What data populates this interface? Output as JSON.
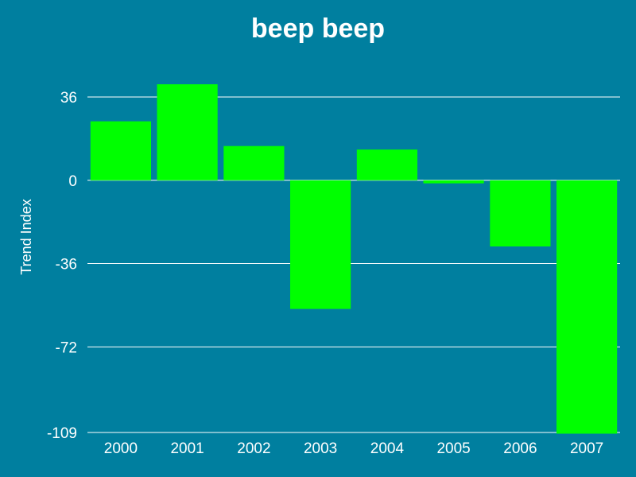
{
  "chart_data": {
    "type": "bar",
    "title": "beep beep",
    "xlabel": "",
    "ylabel": "Trend Index",
    "categories": [
      "2000",
      "2001",
      "2002",
      "2003",
      "2004",
      "2005",
      "2006",
      "2007"
    ],
    "values": [
      25.5,
      41.5,
      14.8,
      -55.6,
      13.3,
      -1.3,
      -28.6,
      -109.5
    ],
    "yticks": [
      36,
      0,
      -36,
      -72,
      -109
    ],
    "ylim": [
      -109,
      36
    ],
    "grid": true,
    "legend": "none",
    "colors": {
      "background": "#007f9f",
      "bar": "#00ff00",
      "text": "#ffffff",
      "grid": "#ffffff"
    }
  }
}
